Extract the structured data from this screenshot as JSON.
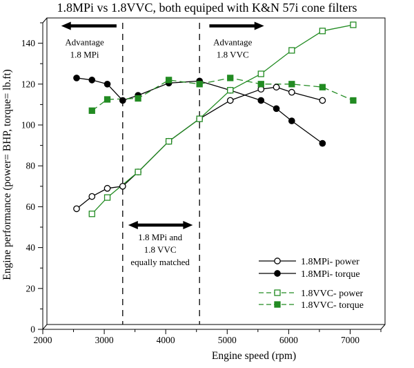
{
  "chart_data": {
    "type": "line",
    "title": "1.8MPi vs 1.8VVC, both equiped with K&N 57i cone filters",
    "xlabel": "Engine speed (rpm)",
    "ylabel": "Engine performance (power= BHP, torque= lb.ft)",
    "xlim": [
      2000,
      7500
    ],
    "ylim": [
      0,
      150
    ],
    "x_major_ticks": [
      2000,
      3000,
      4000,
      5000,
      6000,
      7000
    ],
    "x_minor_step": 500,
    "y_major_ticks": [
      0,
      20,
      40,
      60,
      80,
      100,
      120,
      140
    ],
    "y_minor_step": 10,
    "grid": false,
    "legend_position": "lower right",
    "colors": {
      "mpi": "#000000",
      "vvc": "#228b22"
    },
    "series": [
      {
        "name": "1.8MPi- power",
        "color": "#000000",
        "line": "solid",
        "marker": "circle-open",
        "points": [
          [
            2550,
            59
          ],
          [
            2800,
            65
          ],
          [
            3050,
            69
          ],
          [
            3300,
            70
          ],
          [
            3550,
            77
          ],
          [
            4050,
            92
          ],
          [
            4550,
            103
          ],
          [
            5050,
            112
          ],
          [
            5550,
            117.5
          ],
          [
            5800,
            118.5
          ],
          [
            6050,
            116
          ],
          [
            6550,
            112
          ]
        ]
      },
      {
        "name": "1.8MPi- torque",
        "color": "#000000",
        "line": "solid",
        "marker": "circle-filled",
        "points": [
          [
            2550,
            123
          ],
          [
            2800,
            122
          ],
          [
            3050,
            120
          ],
          [
            3300,
            112
          ],
          [
            3550,
            114.5
          ],
          [
            4050,
            120.5
          ],
          [
            4550,
            121.5
          ],
          [
            5050,
            117
          ],
          [
            5550,
            112
          ],
          [
            5800,
            108
          ],
          [
            6050,
            102
          ],
          [
            6550,
            91
          ]
        ]
      },
      {
        "name": "1.8VVC- power",
        "color": "#228b22",
        "line": "solid",
        "legend_line": "dashed",
        "marker": "square-open",
        "points": [
          [
            2800,
            56.5
          ],
          [
            3050,
            64.5
          ],
          [
            3550,
            77
          ],
          [
            4050,
            92
          ],
          [
            4550,
            103
          ],
          [
            5050,
            117
          ],
          [
            5550,
            125
          ],
          [
            6050,
            136.5
          ],
          [
            6550,
            146
          ],
          [
            7050,
            149
          ]
        ]
      },
      {
        "name": "1.8VVC- torque",
        "color": "#228b22",
        "line": "dashed",
        "marker": "square-filled",
        "points": [
          [
            2800,
            107
          ],
          [
            3050,
            112.5
          ],
          [
            3550,
            113
          ],
          [
            4050,
            122
          ],
          [
            4550,
            120
          ],
          [
            5050,
            123
          ],
          [
            5550,
            120
          ],
          [
            6050,
            120
          ],
          [
            6550,
            118.5
          ],
          [
            7050,
            112
          ]
        ]
      }
    ],
    "reference_lines": [
      {
        "rpm": 3300
      },
      {
        "rpm": 4550
      }
    ],
    "annotations": [
      {
        "id": "advantage-mpi",
        "text_lines": [
          "Advantage",
          "1.8 MPi"
        ],
        "text_rpm": 2680,
        "text_value": 139,
        "arrow": {
          "from_rpm": 3200,
          "to_rpm": 2300,
          "value": 148.5,
          "heads": "end"
        }
      },
      {
        "id": "advantage-vvc",
        "text_lines": [
          "Advantage",
          "1.8 VVC"
        ],
        "text_rpm": 5090,
        "text_value": 139,
        "arrow": {
          "from_rpm": 4710,
          "to_rpm": 5600,
          "value": 148.5,
          "heads": "end"
        }
      },
      {
        "id": "equally-matched",
        "text_lines": [
          "1.8 MPi and",
          "1.8 VVC",
          "equally matched"
        ],
        "text_rpm": 3910,
        "text_value": 43.5,
        "arrow": {
          "from_rpm": 3390,
          "to_rpm": 4440,
          "value": 51,
          "heads": "both"
        }
      }
    ]
  }
}
